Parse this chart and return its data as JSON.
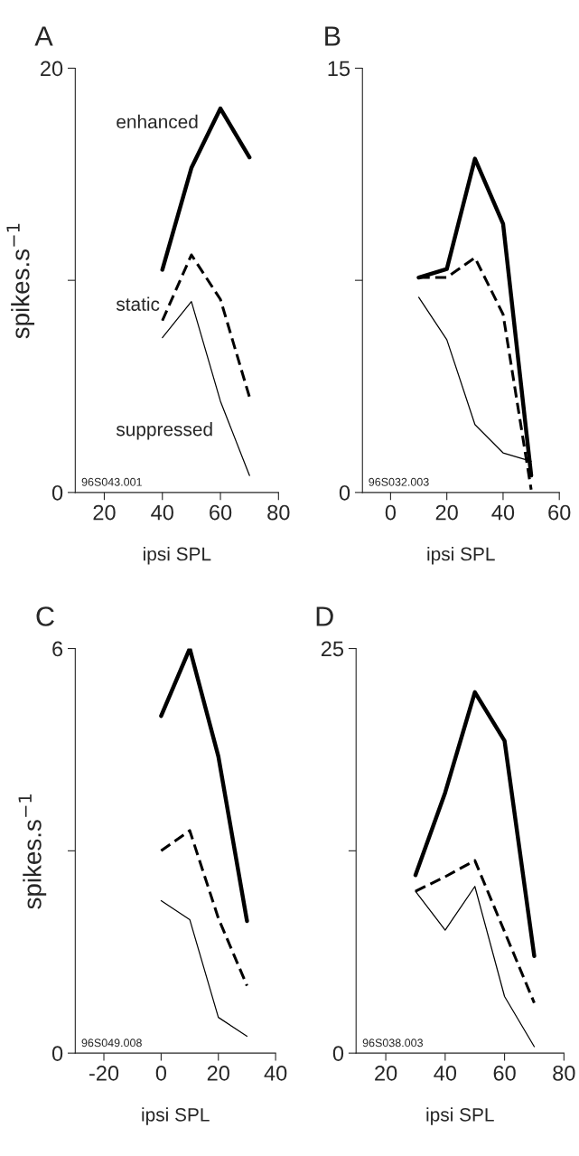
{
  "chart_data": [
    {
      "type": "line",
      "title": "A",
      "xlabel": "ipsi SPL",
      "ylabel": "spikes.s$^{−1}$",
      "x": [
        40,
        50,
        60,
        70
      ],
      "xlim": [
        10,
        80
      ],
      "xticks": [
        20,
        40,
        60,
        80
      ],
      "ylim": [
        0,
        20
      ],
      "yticks": [
        0,
        {
          "value": 10,
          "label": null
        },
        20
      ],
      "grid": false,
      "legend": false,
      "marker": "none",
      "annotations": [
        "96S043.001"
      ],
      "series": [
        {
          "name": "enhanced",
          "color": "#000000",
          "line_style": "solid",
          "values": [
            10.5,
            15.3,
            18.1,
            15.8
          ]
        },
        {
          "name": "static",
          "color": "#000000",
          "line_style": "dashed",
          "values": [
            8.1,
            11.2,
            9.1,
            4.5
          ]
        },
        {
          "name": "suppressed",
          "color": "#000000",
          "line_style": "solid",
          "values": [
            7.3,
            9.0,
            4.3,
            0.8
          ]
        }
      ]
    },
    {
      "type": "line",
      "title": "B",
      "xlabel": "ipsi SPL",
      "x": [
        10,
        20,
        30,
        40,
        50
      ],
      "xlim": [
        -10,
        60
      ],
      "xticks": [
        0,
        20,
        40,
        60
      ],
      "ylim": [
        0,
        15
      ],
      "yticks": [
        0,
        {
          "value": 7.5,
          "label": null
        },
        15
      ],
      "grid": false,
      "legend": false,
      "marker": "none",
      "annotations": [
        "96S032.003"
      ],
      "series": [
        {
          "color": "#000000",
          "line_style": "solid",
          "values": [
            7.6,
            7.9,
            11.8,
            9.5,
            0.6
          ]
        },
        {
          "color": "#000000",
          "line_style": "dashed",
          "values": [
            7.6,
            7.6,
            8.3,
            6.3,
            0.1
          ]
        },
        {
          "color": "#000000",
          "line_style": "solid",
          "values": [
            6.9,
            5.4,
            2.4,
            1.4,
            1.1
          ]
        }
      ]
    },
    {
      "type": "line",
      "title": "C",
      "xlabel": "ipsi SPL",
      "ylabel": "spikes.s$^{−1}$",
      "x": [
        0,
        10,
        20,
        30
      ],
      "xlim": [
        -30,
        40
      ],
      "xticks": [
        -20,
        0,
        20,
        40
      ],
      "ylim": [
        0,
        6
      ],
      "yticks": [
        0,
        {
          "value": 3,
          "label": null
        },
        6
      ],
      "grid": false,
      "legend": false,
      "marker": "none",
      "annotations": [
        "96S049.008"
      ],
      "series": [
        {
          "color": "#000000",
          "line_style": "solid",
          "values": [
            5.0,
            6.0,
            4.4,
            1.96
          ]
        },
        {
          "color": "#000000",
          "line_style": "dashed",
          "values": [
            3.0,
            3.3,
            2.0,
            1.0
          ]
        },
        {
          "color": "#000000",
          "line_style": "solid",
          "values": [
            2.26,
            1.98,
            0.53,
            0.25
          ]
        }
      ]
    },
    {
      "type": "line",
      "title": "D",
      "xlabel": "ipsi SPL",
      "x": [
        30,
        40,
        50,
        60,
        70
      ],
      "xlim": [
        10,
        80
      ],
      "xticks": [
        20,
        40,
        60,
        80
      ],
      "ylim": [
        0,
        25
      ],
      "yticks": [
        0,
        {
          "value": 12.5,
          "label": null
        },
        25
      ],
      "grid": false,
      "legend": false,
      "marker": "none",
      "annotations": [
        "96S038.003"
      ],
      "series": [
        {
          "color": "#000000",
          "line_style": "solid",
          "values": [
            11.0,
            16.1,
            22.3,
            19.3,
            6.0
          ]
        },
        {
          "color": "#000000",
          "line_style": "dashed",
          "values": [
            10.0,
            10.9,
            11.9,
            7.5,
            3.1
          ]
        },
        {
          "color": "#000000",
          "line_style": "solid",
          "values": [
            10.0,
            7.6,
            10.3,
            3.5,
            0.4
          ]
        }
      ]
    }
  ]
}
